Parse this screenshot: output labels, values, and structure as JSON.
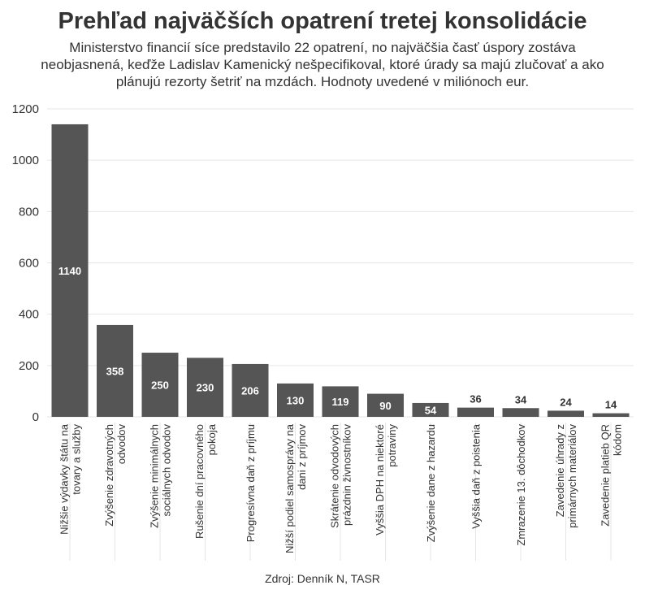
{
  "chart_data": {
    "type": "bar",
    "title": "Prehľad najväčších opatrení tretej konsolidácie",
    "subtitle": "Ministerstvo financií síce predstavilo 22 opatrení, no najväčšia časť úspory zostáva neobjasnená, keďže Ladislav Kamenický nešpecifikoval, ktoré úrady sa majú zlučovať a ako plánujú rezorty šetriť na mzdách. Hodnoty uvedené v miliónoch eur.",
    "source": "Zdroj: Denník N, TASR",
    "categories": [
      [
        "Nižšie výdavky štátu na",
        "tovary a služby"
      ],
      [
        "Zvýšenie zdravotných",
        "odvodov"
      ],
      [
        "Zvýšenie minimálnych",
        "sociálnych odvodov"
      ],
      [
        "Rušenie dní pracovného",
        "pokoja"
      ],
      [
        "Progresívna daň z príjmu"
      ],
      [
        "Nižší podiel samosprávy na",
        "dani z príjmov"
      ],
      [
        "Skrátenie odvodových",
        "prázdnin živnostníkov"
      ],
      [
        "Vyššia DPH na niektoré",
        "potraviny"
      ],
      [
        "Zvýšenie dane z hazardu"
      ],
      [
        "Vyššia daň z poistenia"
      ],
      [
        "Zmrazenie 13. dôchodkov"
      ],
      [
        "Zavedenie úhrady z",
        "primárnych materiálov"
      ],
      [
        "Zavedenie platieb QR",
        "kódom"
      ]
    ],
    "values": [
      1140,
      358,
      250,
      230,
      206,
      130,
      119,
      90,
      54,
      36,
      34,
      24,
      14
    ],
    "yticks": [
      0,
      200,
      400,
      600,
      800,
      1000,
      1200
    ],
    "ylim": [
      0,
      1200
    ],
    "grid": true,
    "bar_color": "#555555"
  }
}
